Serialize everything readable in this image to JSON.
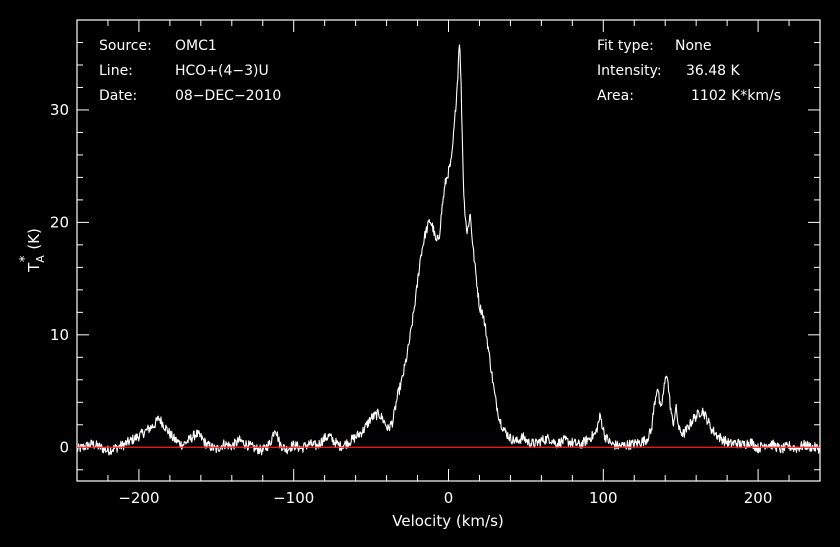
{
  "chart_data": {
    "type": "line",
    "title": "",
    "xlabel": "Velocity (km/s)",
    "ylabel": {
      "main": "T",
      "sub": "A",
      "sup": "*",
      "unit": "(K)"
    },
    "xlim": [
      -240,
      240
    ],
    "ylim": [
      -3,
      38
    ],
    "xticks": [
      -200,
      -100,
      0,
      100,
      200
    ],
    "yticks": [
      0,
      10,
      20,
      30
    ],
    "xtick_labels": [
      "−200",
      "−100",
      "0",
      "100",
      "200"
    ],
    "ytick_labels": [
      "0",
      "10",
      "20",
      "30"
    ],
    "baseline": 0,
    "colors": {
      "background": "#000000",
      "spectrum": "#ffffff",
      "baseline": "#ff2020",
      "axes": "#ffffff"
    },
    "series": [
      {
        "x": [
          -240,
          -230,
          -220,
          -210,
          -200,
          -195,
          -190,
          -187,
          -183,
          -178,
          -172,
          -168,
          -163,
          -160,
          -156,
          -150,
          -145,
          -140,
          -135,
          -130,
          -125,
          -120,
          -115,
          -112,
          -109,
          -105,
          -100,
          -95,
          -90,
          -85,
          -80,
          -77,
          -74,
          -70,
          -65,
          -60,
          -55,
          -50,
          -45,
          -42,
          -39,
          -36,
          -33,
          -30,
          -27,
          -24,
          -21,
          -18,
          -15,
          -12,
          -10,
          -8,
          -6,
          -4,
          -2,
          0,
          2,
          4,
          6,
          7,
          8,
          9,
          10,
          11,
          12,
          14,
          16,
          18,
          20,
          22,
          24,
          26,
          28,
          30,
          33,
          36,
          40,
          44,
          48,
          52,
          56,
          60,
          65,
          70,
          75,
          80,
          85,
          90,
          95,
          98,
          101,
          105,
          110,
          115,
          120,
          125,
          128,
          131,
          133,
          135,
          137,
          139,
          141,
          143,
          145,
          147,
          149,
          152,
          155,
          158,
          161,
          164,
          167,
          170,
          174,
          178,
          182,
          186,
          190,
          195,
          200,
          205,
          210,
          215,
          220,
          225,
          230,
          235,
          240
        ],
        "y": [
          -0.2,
          0.3,
          -0.3,
          0.2,
          1.0,
          1.5,
          2.0,
          2.6,
          1.8,
          0.8,
          0.2,
          0.6,
          1.2,
          0.9,
          0.2,
          -0.2,
          0.3,
          0.1,
          0.6,
          0.2,
          -0.1,
          -0.3,
          0.4,
          1.8,
          0.3,
          -0.2,
          0.2,
          -0.1,
          0.3,
          0.1,
          0.8,
          1.0,
          0.5,
          0.1,
          0.4,
          0.9,
          1.5,
          2.6,
          3.0,
          2.4,
          1.6,
          2.3,
          4.5,
          6.0,
          8.0,
          10.5,
          13.5,
          17.0,
          19.0,
          20.2,
          19.5,
          18.2,
          18.8,
          21.5,
          23.5,
          24.5,
          25.5,
          29.0,
          33.0,
          36.48,
          33.0,
          27.0,
          22.0,
          20.5,
          19.0,
          20.8,
          17.5,
          15.0,
          12.5,
          12.0,
          10.5,
          8.5,
          6.5,
          4.5,
          2.5,
          1.5,
          0.8,
          0.5,
          0.9,
          0.4,
          0.3,
          0.6,
          0.8,
          0.3,
          0.6,
          0.4,
          0.2,
          0.7,
          1.2,
          2.8,
          1.0,
          0.3,
          0.1,
          0.2,
          0.3,
          0.5,
          0.7,
          1.5,
          3.8,
          5.5,
          3.2,
          5.0,
          6.8,
          4.0,
          2.0,
          3.5,
          1.5,
          1.2,
          1.8,
          2.5,
          2.9,
          3.3,
          2.5,
          1.6,
          1.0,
          0.6,
          0.3,
          0.4,
          0.2,
          0.5,
          -0.1,
          0.3,
          0.2,
          -0.2,
          0.1,
          -0.1,
          0.2,
          0.0,
          -0.1
        ]
      }
    ]
  },
  "info_left": {
    "rows": [
      {
        "key": "Source:",
        "value": "OMC1"
      },
      {
        "key": "Line:",
        "value": "HCO+(4−3)U"
      },
      {
        "key": "Date:",
        "value": "08−DEC−2010"
      }
    ]
  },
  "info_right": {
    "rows": [
      {
        "key": "Fit type:",
        "value": "None"
      },
      {
        "key": "Intensity:",
        "value": "36.48 K"
      },
      {
        "key": "Area:",
        "value": "1102 K*km/s"
      }
    ]
  }
}
